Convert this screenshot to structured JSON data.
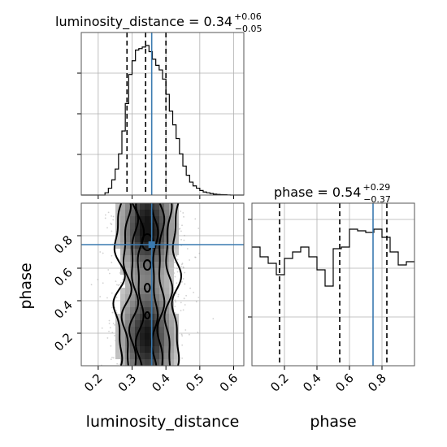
{
  "chart_data": [
    {
      "type": "histogram",
      "parameter": "luminosity_distance",
      "title": {
        "main": "luminosity_distance = 0.34",
        "upper": "+0.06",
        "lower": "−0.05"
      },
      "xlim": [
        0.15,
        0.63
      ],
      "x_ticks": [
        0.2,
        0.3,
        0.4,
        0.5,
        0.6
      ],
      "quantiles": [
        0.285,
        0.34,
        0.4
      ],
      "truth": 0.358,
      "bin_edges": [
        0.15,
        0.16,
        0.17,
        0.18,
        0.19,
        0.2,
        0.21,
        0.22,
        0.23,
        0.24,
        0.25,
        0.26,
        0.27,
        0.28,
        0.29,
        0.3,
        0.31,
        0.32,
        0.33,
        0.34,
        0.35,
        0.36,
        0.37,
        0.38,
        0.39,
        0.4,
        0.41,
        0.42,
        0.43,
        0.44,
        0.45,
        0.46,
        0.47,
        0.48,
        0.49,
        0.5,
        0.51,
        0.52,
        0.53,
        0.54,
        0.55,
        0.56,
        0.57,
        0.58,
        0.59,
        0.6,
        0.61,
        0.62,
        0.63
      ],
      "counts": [
        0,
        0,
        0,
        0,
        0,
        0,
        0,
        0.015,
        0.045,
        0.1,
        0.17,
        0.27,
        0.42,
        0.6,
        0.79,
        0.88,
        0.95,
        0.96,
        0.97,
        0.98,
        0.94,
        0.89,
        0.85,
        0.82,
        0.76,
        0.66,
        0.55,
        0.46,
        0.37,
        0.27,
        0.19,
        0.13,
        0.085,
        0.06,
        0.045,
        0.03,
        0.02,
        0.015,
        0.01,
        0.006,
        0.004,
        0.003,
        0.002,
        0.001,
        0,
        0,
        0,
        0
      ],
      "xlabel": "luminosity_distance"
    },
    {
      "type": "histogram",
      "parameter": "phase",
      "title": {
        "main": "phase = 0.54",
        "upper": "+0.29",
        "lower": "−0.37"
      },
      "xlim": [
        0.0,
        1.0
      ],
      "x_ticks": [
        0.2,
        0.4,
        0.6,
        0.8
      ],
      "quantiles": [
        0.17,
        0.54,
        0.83
      ],
      "truth": 0.745,
      "bin_edges": [
        0.0,
        0.05,
        0.1,
        0.15,
        0.2,
        0.25,
        0.3,
        0.35,
        0.4,
        0.45,
        0.5,
        0.55,
        0.6,
        0.65,
        0.7,
        0.75,
        0.8,
        0.85,
        0.9,
        0.95,
        1.0
      ],
      "counts": [
        0.73,
        0.67,
        0.63,
        0.56,
        0.66,
        0.7,
        0.73,
        0.67,
        0.59,
        0.49,
        0.72,
        0.73,
        0.84,
        0.83,
        0.82,
        0.84,
        0.79,
        0.7,
        0.62,
        0.64
      ],
      "xlabel": "phase"
    },
    {
      "type": "2d-density",
      "x_param": "luminosity_distance",
      "y_param": "phase",
      "xlim": [
        0.15,
        0.63
      ],
      "ylim": [
        0.0,
        1.0
      ],
      "x_ticks": [
        0.2,
        0.3,
        0.4,
        0.5,
        0.6
      ],
      "y_ticks": [
        0.2,
        0.4,
        0.6,
        0.8
      ],
      "truth": [
        0.358,
        0.745
      ],
      "xlabel": "luminosity_distance",
      "ylabel": "phase"
    }
  ]
}
